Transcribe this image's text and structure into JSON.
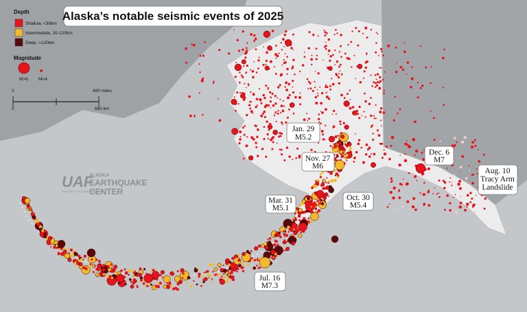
{
  "title": "Alaska’s notable seismic events of 2025",
  "legend": {
    "depth_title": "Depth",
    "depth_items": [
      "Shallow, <30km",
      "Intermediate, 30-120km",
      "Deep, >120km"
    ],
    "magnitude_title": "Magnitude",
    "large": "M>6",
    "small": "M<4"
  },
  "scale_bar": {
    "miles_zero": "0",
    "miles_label": "400 miles",
    "km_zero": "0",
    "km_label": "660 km"
  },
  "logo": {
    "mark": "UAF",
    "university": "UNIVERSITY OF ALASKA FAIRBANKS",
    "lines": [
      "ALASKA",
      "EARTHQUAKE",
      "CENTER"
    ]
  },
  "annotations": [
    {
      "lines": [
        "Jan. 29",
        "M5.2"
      ]
    },
    {
      "lines": [
        "Nov. 27",
        "M6"
      ]
    },
    {
      "lines": [
        "Dec. 6",
        "M7"
      ]
    },
    {
      "lines": [
        "Aug. 10",
        "Tracy Arm",
        "Landslide"
      ]
    },
    {
      "lines": [
        "Mar. 31",
        "M5.1"
      ]
    },
    {
      "lines": [
        "Oct. 30",
        "M5.4"
      ]
    },
    {
      "lines": [
        "Jul. 16",
        "M7.3"
      ]
    }
  ]
}
